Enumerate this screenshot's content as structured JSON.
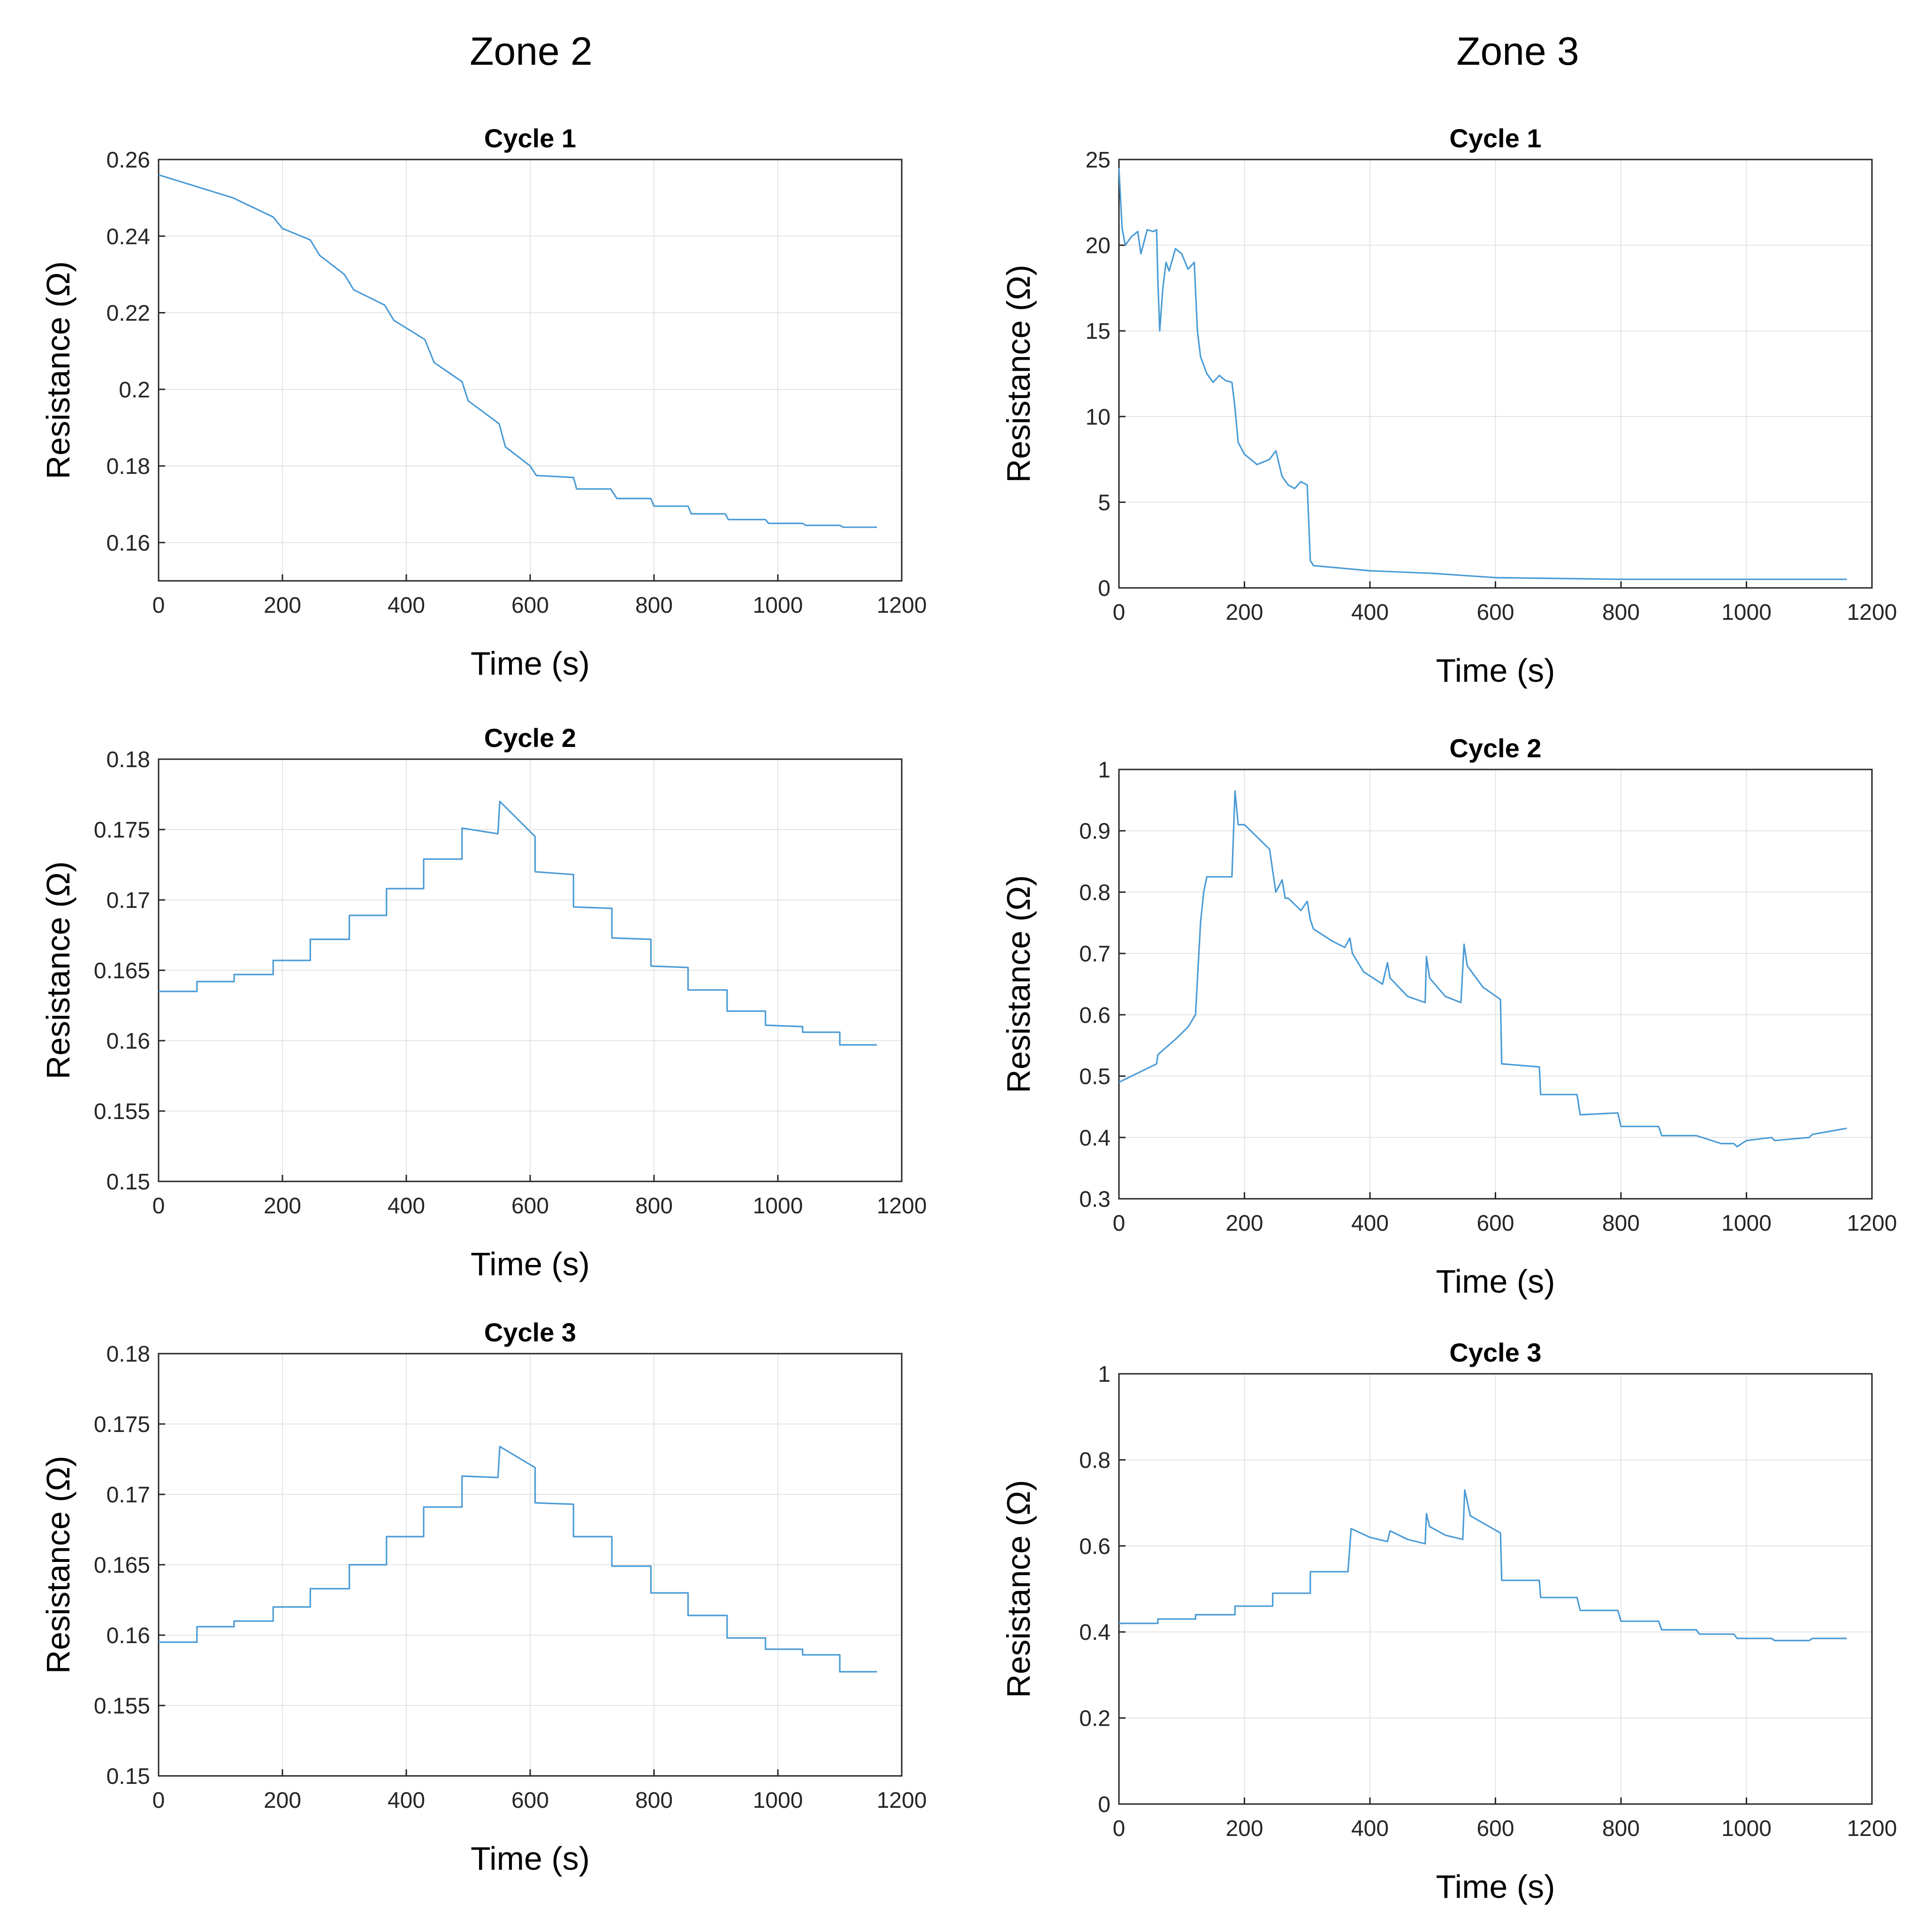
{
  "headers": {
    "zone2": "Zone 2",
    "zone3": "Zone 3"
  },
  "colors": {
    "series": "#4a9bd6",
    "grid": "#e3e3e3",
    "axis": "#262626"
  },
  "chart_data": [
    {
      "id": "z2c1",
      "type": "line",
      "zone": "Zone 2",
      "title": "Cycle 1",
      "xlabel": "Time (s)",
      "ylabel": "Resistance (Ω)",
      "xlim": [
        0,
        1200
      ],
      "ylim": [
        0.15,
        0.26
      ],
      "xticks": [
        0,
        200,
        400,
        600,
        800,
        1000,
        1200
      ],
      "xtick_labels": [
        "0",
        "200",
        "400",
        "600",
        "800",
        "1000",
        "1200"
      ],
      "yticks": [
        0.16,
        0.18,
        0.2,
        0.22,
        0.24,
        0.26
      ],
      "ytick_labels": [
        "0.16",
        "0.18",
        "0.2",
        "0.22",
        "0.24",
        "0.26"
      ],
      "series": [
        {
          "name": "Resistance",
          "x": [
            0,
            60,
            120,
            185,
            200,
            245,
            260,
            300,
            315,
            365,
            380,
            430,
            445,
            490,
            500,
            550,
            560,
            600,
            610,
            670,
            675,
            730,
            740,
            795,
            800,
            855,
            860,
            915,
            920,
            980,
            985,
            1040,
            1045,
            1100,
            1105,
            1160
          ],
          "y": [
            0.256,
            0.253,
            0.25,
            0.245,
            0.242,
            0.239,
            0.235,
            0.23,
            0.226,
            0.222,
            0.218,
            0.213,
            0.207,
            0.202,
            0.197,
            0.191,
            0.185,
            0.18,
            0.1775,
            0.177,
            0.174,
            0.174,
            0.1715,
            0.1715,
            0.1695,
            0.1695,
            0.1675,
            0.1675,
            0.166,
            0.166,
            0.165,
            0.165,
            0.1645,
            0.1645,
            0.164,
            0.164
          ]
        }
      ]
    },
    {
      "id": "z3c1",
      "type": "line",
      "zone": "Zone 3",
      "title": "Cycle 1",
      "xlabel": "Time (s)",
      "ylabel": "Resistance (Ω)",
      "xlim": [
        0,
        1200
      ],
      "ylim": [
        0,
        25
      ],
      "xticks": [
        0,
        200,
        400,
        600,
        800,
        1000,
        1200
      ],
      "xtick_labels": [
        "0",
        "200",
        "400",
        "600",
        "800",
        "1000",
        "1200"
      ],
      "yticks": [
        0,
        5,
        10,
        15,
        20,
        25
      ],
      "ytick_labels": [
        "0",
        "5",
        "10",
        "15",
        "20",
        "25"
      ],
      "series": [
        {
          "name": "Resistance",
          "x": [
            0,
            5,
            10,
            20,
            30,
            35,
            45,
            55,
            60,
            62,
            65,
            70,
            75,
            80,
            90,
            100,
            110,
            120,
            125,
            130,
            140,
            150,
            160,
            170,
            180,
            185,
            190,
            200,
            220,
            240,
            250,
            260,
            270,
            280,
            290,
            300,
            305,
            310,
            400,
            500,
            600,
            800,
            1000,
            1160
          ],
          "y": [
            24.5,
            21.0,
            20.0,
            20.5,
            20.8,
            19.5,
            20.9,
            20.8,
            20.9,
            18.0,
            15.0,
            17.5,
            19.0,
            18.5,
            19.8,
            19.5,
            18.6,
            19.0,
            15.0,
            13.5,
            12.5,
            12.0,
            12.4,
            12.1,
            12.0,
            10.5,
            8.5,
            7.8,
            7.2,
            7.5,
            8.0,
            6.5,
            6.0,
            5.8,
            6.2,
            6.0,
            1.6,
            1.3,
            1.0,
            0.85,
            0.6,
            0.5,
            0.5,
            0.5
          ]
        }
      ]
    },
    {
      "id": "z2c2",
      "type": "line",
      "zone": "Zone 2",
      "title": "Cycle 2",
      "xlabel": "Time (s)",
      "ylabel": "Resistance (Ω)",
      "xlim": [
        0,
        1200
      ],
      "ylim": [
        0.15,
        0.18
      ],
      "xticks": [
        0,
        200,
        400,
        600,
        800,
        1000,
        1200
      ],
      "xtick_labels": [
        "0",
        "200",
        "400",
        "600",
        "800",
        "1000",
        "1200"
      ],
      "yticks": [
        0.15,
        0.155,
        0.16,
        0.165,
        0.17,
        0.175,
        0.18
      ],
      "ytick_labels": [
        "0.15",
        "0.155",
        "0.16",
        "0.165",
        "0.17",
        "0.175",
        "0.18"
      ],
      "series": [
        {
          "name": "Resistance",
          "x": [
            0,
            62,
            62,
            122,
            122,
            185,
            185,
            245,
            245,
            308,
            308,
            368,
            368,
            428,
            428,
            490,
            490,
            548,
            551,
            608,
            608,
            670,
            670,
            732,
            732,
            795,
            795,
            855,
            855,
            918,
            918,
            980,
            980,
            1040,
            1040,
            1100,
            1100,
            1160
          ],
          "y": [
            0.1635,
            0.1635,
            0.1642,
            0.1642,
            0.1647,
            0.1647,
            0.1657,
            0.1657,
            0.1672,
            0.1672,
            0.1689,
            0.1689,
            0.1708,
            0.1708,
            0.1729,
            0.1729,
            0.1751,
            0.1747,
            0.177,
            0.1745,
            0.172,
            0.1718,
            0.1695,
            0.1694,
            0.1673,
            0.1672,
            0.1653,
            0.1652,
            0.1636,
            0.1636,
            0.1621,
            0.1621,
            0.1611,
            0.161,
            0.1606,
            0.1606,
            0.1597,
            0.1597
          ]
        }
      ]
    },
    {
      "id": "z3c2",
      "type": "line",
      "zone": "Zone 3",
      "title": "Cycle 2",
      "xlabel": "Time (s)",
      "ylabel": "Resistance (Ω)",
      "xlim": [
        0,
        1200
      ],
      "ylim": [
        0.3,
        1
      ],
      "xticks": [
        0,
        200,
        400,
        600,
        800,
        1000,
        1200
      ],
      "xtick_labels": [
        "0",
        "200",
        "400",
        "600",
        "800",
        "1000",
        "1200"
      ],
      "yticks": [
        0.3,
        0.4,
        0.5,
        0.6,
        0.7,
        0.8,
        0.9,
        1
      ],
      "ytick_labels": [
        "0.3",
        "0.4",
        "0.5",
        "0.6",
        "0.7",
        "0.8",
        "0.9",
        "1"
      ],
      "series": [
        {
          "name": "Resistance",
          "x": [
            0,
            30,
            60,
            62,
            90,
            110,
            122,
            130,
            135,
            140,
            160,
            180,
            185,
            190,
            200,
            220,
            240,
            250,
            260,
            265,
            270,
            290,
            300,
            305,
            310,
            340,
            360,
            368,
            372,
            390,
            420,
            428,
            432,
            460,
            488,
            490,
            495,
            520,
            545,
            550,
            555,
            580,
            608,
            610,
            670,
            672,
            730,
            735,
            795,
            800,
            860,
            865,
            920,
            960,
            980,
            985,
            1000,
            1040,
            1045,
            1100,
            1105,
            1160
          ],
          "y": [
            0.49,
            0.505,
            0.52,
            0.535,
            0.56,
            0.58,
            0.6,
            0.75,
            0.8,
            0.825,
            0.825,
            0.825,
            0.965,
            0.91,
            0.91,
            0.89,
            0.87,
            0.8,
            0.82,
            0.79,
            0.79,
            0.77,
            0.785,
            0.755,
            0.74,
            0.72,
            0.71,
            0.725,
            0.7,
            0.67,
            0.65,
            0.685,
            0.66,
            0.63,
            0.62,
            0.695,
            0.66,
            0.63,
            0.62,
            0.715,
            0.68,
            0.645,
            0.625,
            0.52,
            0.515,
            0.47,
            0.47,
            0.437,
            0.44,
            0.418,
            0.418,
            0.403,
            0.403,
            0.39,
            0.39,
            0.385,
            0.395,
            0.4,
            0.395,
            0.4,
            0.405,
            0.415
          ]
        }
      ]
    },
    {
      "id": "z2c3",
      "type": "line",
      "zone": "Zone 2",
      "title": "Cycle 3",
      "xlabel": "Time (s)",
      "ylabel": "Resistance (Ω)",
      "xlim": [
        0,
        1200
      ],
      "ylim": [
        0.15,
        0.18
      ],
      "xticks": [
        0,
        200,
        400,
        600,
        800,
        1000,
        1200
      ],
      "xtick_labels": [
        "0",
        "200",
        "400",
        "600",
        "800",
        "1000",
        "1200"
      ],
      "yticks": [
        0.15,
        0.155,
        0.16,
        0.165,
        0.17,
        0.175,
        0.18
      ],
      "ytick_labels": [
        "0.15",
        "0.155",
        "0.16",
        "0.165",
        "0.17",
        "0.175",
        "0.18"
      ],
      "series": [
        {
          "name": "Resistance",
          "x": [
            0,
            62,
            62,
            122,
            122,
            185,
            185,
            245,
            245,
            308,
            308,
            368,
            368,
            428,
            428,
            490,
            490,
            548,
            551,
            608,
            608,
            670,
            670,
            732,
            732,
            795,
            795,
            855,
            855,
            918,
            918,
            980,
            980,
            1040,
            1040,
            1100,
            1100,
            1160
          ],
          "y": [
            0.1595,
            0.1595,
            0.1606,
            0.1606,
            0.161,
            0.161,
            0.162,
            0.162,
            0.1633,
            0.1633,
            0.165,
            0.165,
            0.167,
            0.167,
            0.1691,
            0.1691,
            0.1713,
            0.1712,
            0.1734,
            0.1719,
            0.1694,
            0.1693,
            0.167,
            0.167,
            0.1649,
            0.1649,
            0.163,
            0.163,
            0.1614,
            0.1614,
            0.1598,
            0.1598,
            0.159,
            0.159,
            0.1586,
            0.1586,
            0.1574,
            0.1574
          ]
        }
      ]
    },
    {
      "id": "z3c3",
      "type": "line",
      "zone": "Zone 3",
      "title": "Cycle 3",
      "xlabel": "Time (s)",
      "ylabel": "Resistance (Ω)",
      "xlim": [
        0,
        1200
      ],
      "ylim": [
        0,
        1
      ],
      "xticks": [
        0,
        200,
        400,
        600,
        800,
        1000,
        1200
      ],
      "xtick_labels": [
        "0",
        "200",
        "400",
        "600",
        "800",
        "1000",
        "1200"
      ],
      "yticks": [
        0,
        0.2,
        0.4,
        0.6,
        0.8,
        1
      ],
      "ytick_labels": [
        "0",
        "0.2",
        "0.4",
        "0.6",
        "0.8",
        "1"
      ],
      "series": [
        {
          "name": "Resistance",
          "x": [
            0,
            62,
            62,
            122,
            122,
            185,
            185,
            245,
            245,
            305,
            305,
            365,
            370,
            400,
            428,
            432,
            460,
            488,
            490,
            495,
            520,
            548,
            551,
            560,
            608,
            610,
            670,
            672,
            730,
            735,
            795,
            800,
            860,
            865,
            920,
            925,
            980,
            985,
            1040,
            1045,
            1100,
            1105,
            1160
          ],
          "y": [
            0.42,
            0.42,
            0.43,
            0.43,
            0.44,
            0.44,
            0.46,
            0.46,
            0.49,
            0.49,
            0.54,
            0.54,
            0.64,
            0.62,
            0.61,
            0.635,
            0.615,
            0.605,
            0.675,
            0.645,
            0.625,
            0.615,
            0.73,
            0.67,
            0.63,
            0.52,
            0.52,
            0.48,
            0.48,
            0.45,
            0.45,
            0.425,
            0.425,
            0.405,
            0.405,
            0.395,
            0.395,
            0.385,
            0.385,
            0.38,
            0.38,
            0.385,
            0.385
          ]
        }
      ]
    }
  ]
}
